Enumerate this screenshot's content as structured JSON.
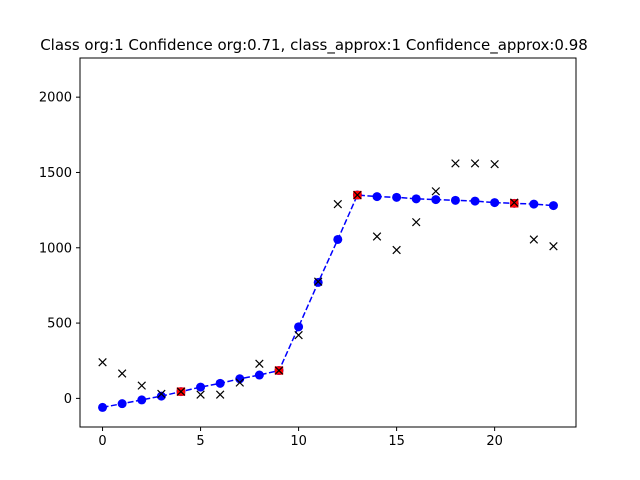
{
  "chart_data": {
    "type": "line",
    "title": "Class org:1  Confidence org:0.71, class_approx:1 Confidence_approx:0.98",
    "xlabel": "",
    "ylabel": "",
    "xlim": [
      -1.15,
      24.15
    ],
    "ylim": [
      -190,
      2260
    ],
    "xticks": [
      0,
      5,
      10,
      15,
      20
    ],
    "yticks": [
      0,
      500,
      1000,
      1500,
      2000
    ],
    "grid": false,
    "legend": "none",
    "series": [
      {
        "marker": "x",
        "color": "#000000",
        "x": [
          0,
          1,
          2,
          3,
          4,
          5,
          6,
          7,
          8,
          9,
          10,
          11,
          12,
          13,
          14,
          15,
          16,
          17,
          18,
          19,
          20,
          21,
          22,
          23
        ],
        "y": [
          240,
          165,
          85,
          30,
          45,
          25,
          25,
          105,
          230,
          185,
          420,
          775,
          1290,
          1350,
          1075,
          985,
          1170,
          1375,
          1560,
          1560,
          1555,
          1300,
          1055,
          1010
        ]
      },
      {
        "marker": "o",
        "linestyle": "dashed",
        "color": "#0000ff",
        "x": [
          0,
          1,
          2,
          3,
          4,
          5,
          6,
          7,
          8,
          9,
          10,
          11,
          12,
          13,
          14,
          15,
          16,
          17,
          18,
          19,
          20,
          21,
          22,
          23
        ],
        "y": [
          -60,
          -35,
          -10,
          15,
          45,
          75,
          100,
          130,
          155,
          185,
          475,
          770,
          1055,
          1350,
          1340,
          1335,
          1325,
          1320,
          1315,
          1310,
          1300,
          1295,
          1290,
          1280
        ]
      },
      {
        "marker": "s",
        "color": "#ff0000",
        "x": [
          4,
          9,
          13,
          21
        ],
        "y": [
          45,
          185,
          1350,
          1295
        ]
      }
    ]
  }
}
